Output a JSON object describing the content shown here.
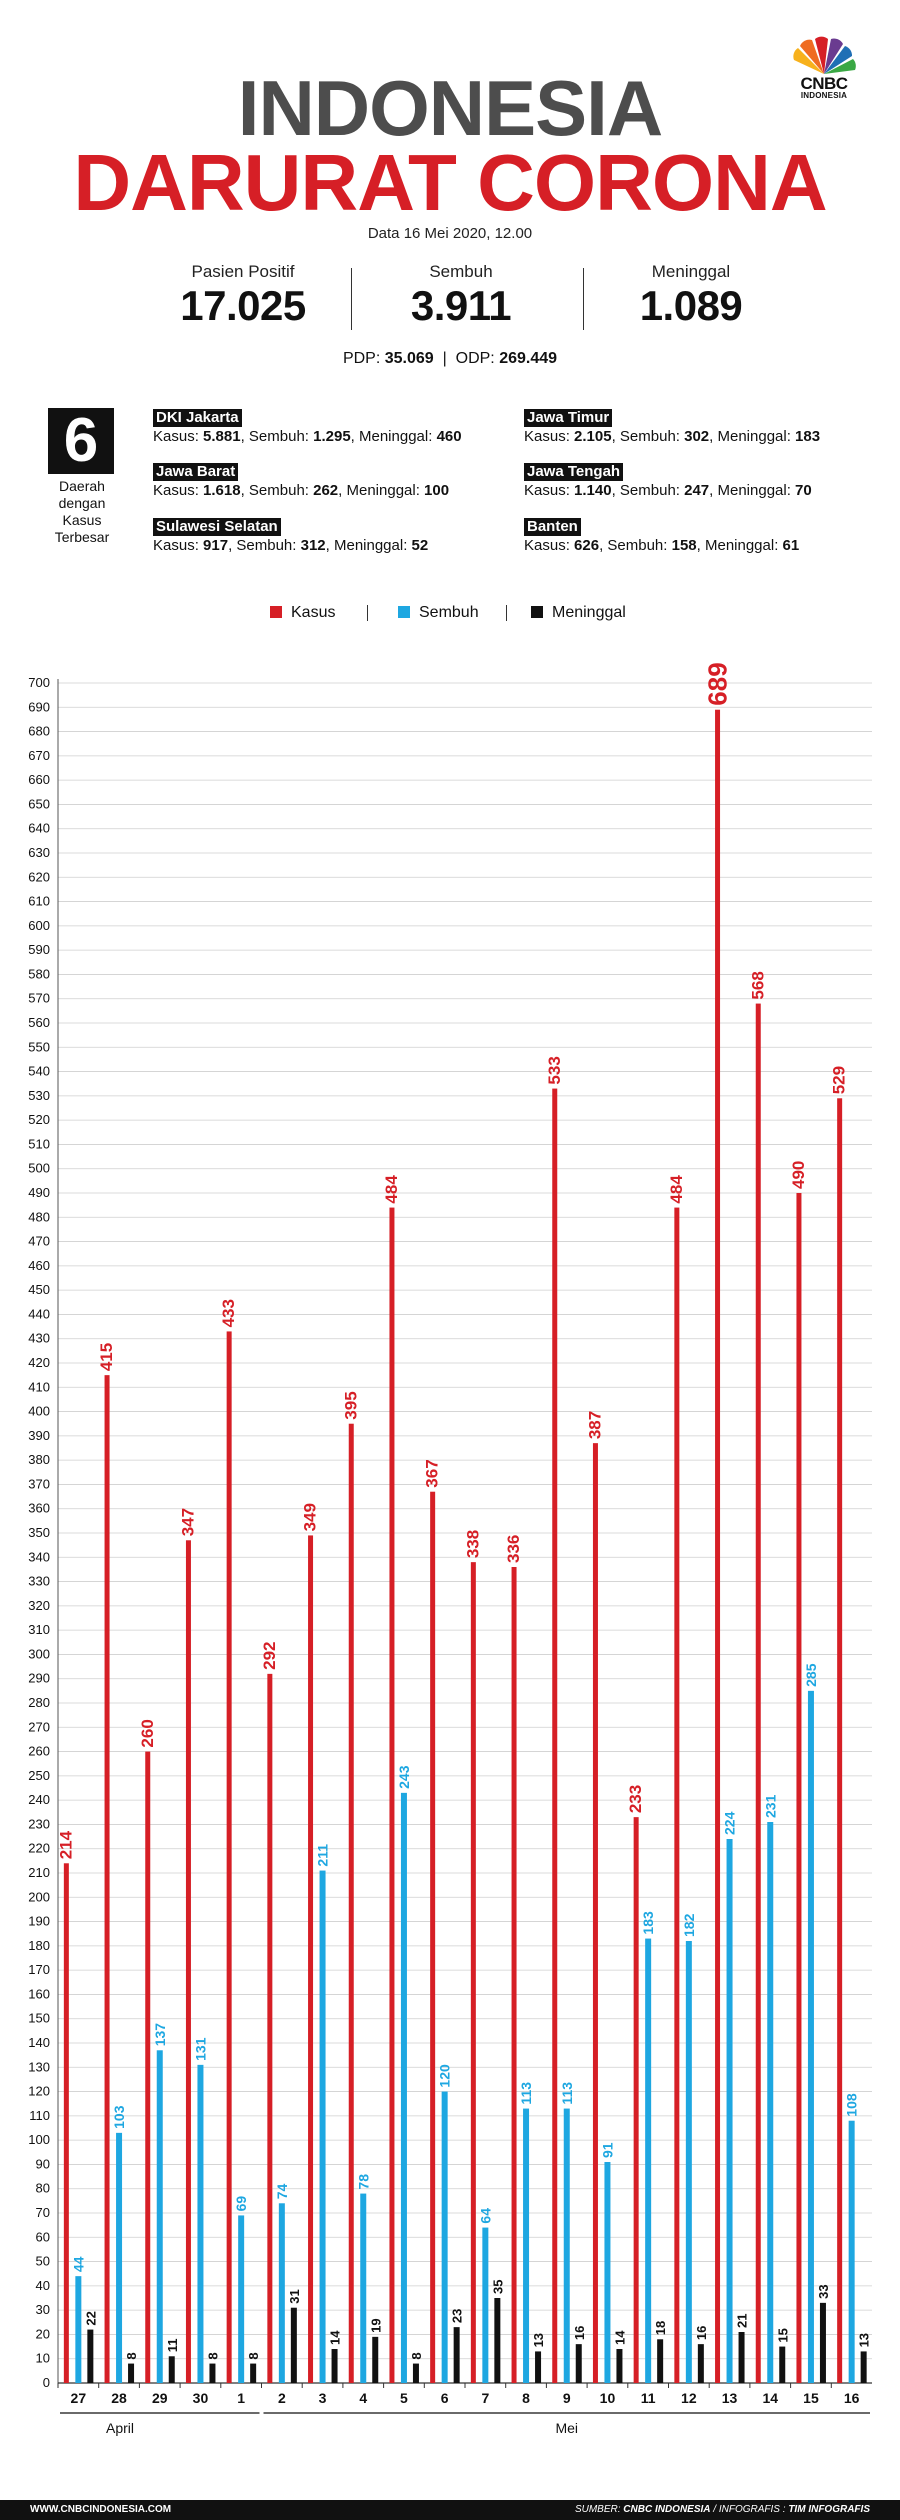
{
  "brand": {
    "line1": "CNBC",
    "line2": "INDONESIA"
  },
  "title": {
    "line1": "INDONESIA",
    "line2": "DARURAT CORONA",
    "color1": "#4d4d4d",
    "color2": "#d61f26"
  },
  "date": "Data 16 Mei 2020, 12.00",
  "stats": [
    {
      "label": "Pasien Positif",
      "value": "17.025"
    },
    {
      "label": "Sembuh",
      "value": "3.911"
    },
    {
      "label": "Meninggal",
      "value": "1.089"
    }
  ],
  "pdp": {
    "label": "PDP:",
    "value": "35.069",
    "sep": "|",
    "odp_label": "ODP:",
    "odp_value": "269.449"
  },
  "regions": {
    "count": "6",
    "caption": [
      "Daerah",
      "dengan",
      "Kasus",
      "Terbesar"
    ],
    "items": [
      {
        "name": "DKI Jakarta",
        "kasus_label": "Kasus: ",
        "kasus": "5.881",
        "sembuh_label": ", Sembuh: ",
        "sembuh": "1.295",
        "meninggal_label": ", Meninggal: ",
        "meninggal": "460"
      },
      {
        "name": "Jawa Barat",
        "kasus_label": "Kasus: ",
        "kasus": "1.618",
        "sembuh_label": ", Sembuh: ",
        "sembuh": "262",
        "meninggal_label": ", Meninggal: ",
        "meninggal": "100"
      },
      {
        "name": "Sulawesi Selatan",
        "kasus_label": "Kasus: ",
        "kasus": "917",
        "sembuh_label": ", Sembuh: ",
        "sembuh": "312",
        "meninggal_label": ", Meninggal: ",
        "meninggal": "52"
      },
      {
        "name": "Jawa Timur",
        "kasus_label": "Kasus: ",
        "kasus": "2.105",
        "sembuh_label": ", Sembuh: ",
        "sembuh": "302",
        "meninggal_label": ", Meninggal: ",
        "meninggal": "183"
      },
      {
        "name": "Jawa Tengah",
        "kasus_label": "Kasus: ",
        "kasus": "1.140",
        "sembuh_label": ", Sembuh: ",
        "sembuh": "247",
        "meninggal_label": ", Meninggal: ",
        "meninggal": "70"
      },
      {
        "name": "Banten",
        "kasus_label": "Kasus: ",
        "kasus": "626",
        "sembuh_label": ", Sembuh: ",
        "sembuh": "158",
        "meninggal_label": ", Meninggal: ",
        "meninggal": "61"
      }
    ]
  },
  "chart_data": {
    "type": "bar",
    "categories": [
      "27",
      "28",
      "29",
      "30",
      "1",
      "2",
      "3",
      "4",
      "5",
      "6",
      "7",
      "8",
      "9",
      "10",
      "11",
      "12",
      "13",
      "14",
      "15",
      "16"
    ],
    "category_groups": [
      {
        "label": "April",
        "categories": [
          "27",
          "28",
          "29",
          "30",
          "1"
        ]
      },
      {
        "label": "Mei",
        "categories": [
          "2",
          "3",
          "4",
          "5",
          "6",
          "7",
          "8",
          "9",
          "10",
          "11",
          "12",
          "13",
          "14",
          "15",
          "16"
        ]
      }
    ],
    "series": [
      {
        "name": "Kasus",
        "color": "#d61f26",
        "values": [
          214,
          415,
          260,
          347,
          433,
          292,
          349,
          395,
          484,
          367,
          338,
          336,
          533,
          387,
          233,
          484,
          689,
          568,
          490,
          529
        ]
      },
      {
        "name": "Sembuh",
        "color": "#1ea7e1",
        "values": [
          44,
          103,
          137,
          131,
          69,
          74,
          211,
          78,
          243,
          120,
          64,
          113,
          113,
          91,
          183,
          182,
          224,
          231,
          285,
          108
        ]
      },
      {
        "name": "Meninggal",
        "color": "#111111",
        "values": [
          22,
          8,
          11,
          8,
          8,
          31,
          14,
          19,
          8,
          23,
          35,
          13,
          16,
          14,
          18,
          16,
          21,
          15,
          33,
          13
        ]
      }
    ],
    "ylim": [
      0,
      700
    ],
    "ytick_step": 10,
    "grid": true,
    "legend": "top-center",
    "title": "",
    "xlabel": "",
    "ylabel": ""
  },
  "footer": {
    "left": "WWW.CNBCINDONESIA.COM",
    "right_prefix": "SUMBER: ",
    "right_source": "CNBC INDONESIA",
    "right_sep": " / INFOGRAFIS : ",
    "right_credit": "TIM INFOGRAFIS"
  }
}
